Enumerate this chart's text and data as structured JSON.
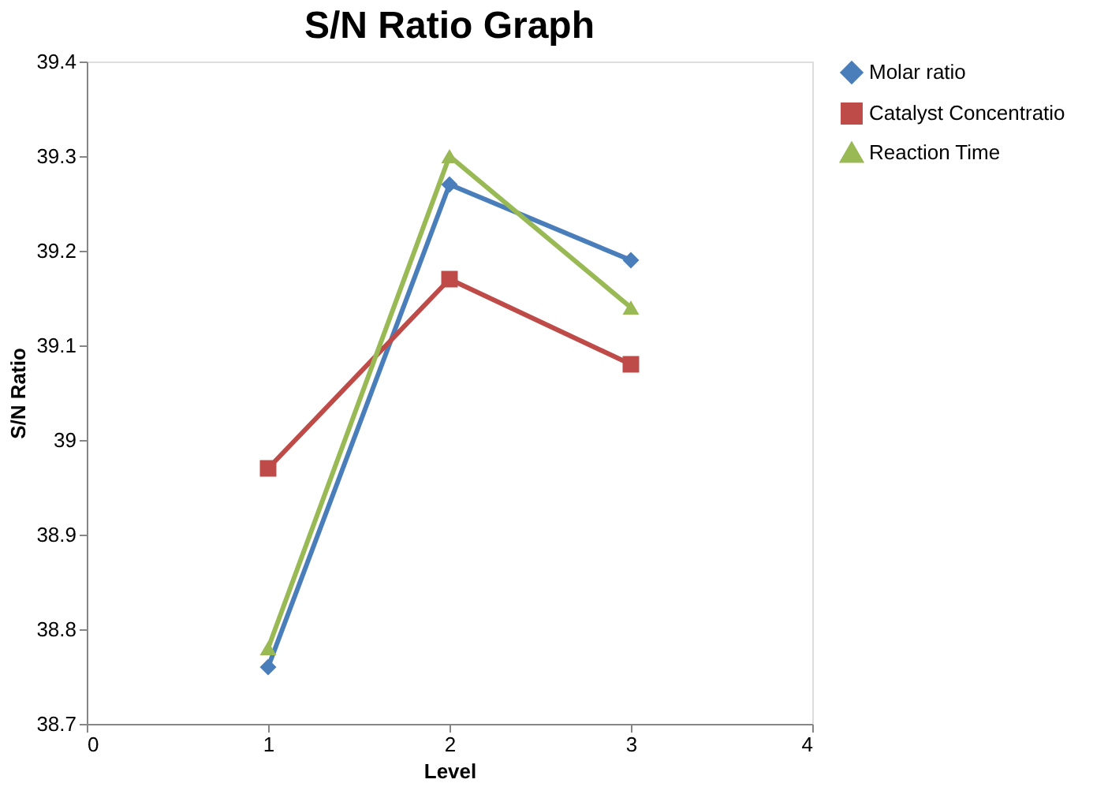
{
  "chart_data": {
    "type": "line",
    "title": "S/N Ratio Graph",
    "xlabel": "Level",
    "ylabel": "S/N Ratio",
    "x": [
      1,
      2,
      3
    ],
    "series": [
      {
        "name": "Molar ratio",
        "color": "#4a7ebb",
        "values": [
          38.76,
          39.27,
          39.19
        ],
        "marker": "diamond"
      },
      {
        "name": "Catalyst Concentratio",
        "color": "#be4b48",
        "values": [
          38.97,
          39.17,
          39.08
        ],
        "marker": "square"
      },
      {
        "name": "Reaction Time",
        "color": "#98b954",
        "values": [
          38.78,
          39.3,
          39.14
        ],
        "marker": "triangle"
      }
    ],
    "xlim": [
      0,
      4
    ],
    "xticks": [
      0,
      1,
      2,
      3,
      4
    ],
    "ylim": [
      38.7,
      39.4
    ],
    "yticks": [
      38.7,
      38.8,
      38.9,
      39,
      39.1,
      39.2,
      39.3,
      39.4
    ],
    "grid": false,
    "legend": "right",
    "line_style": "solid"
  }
}
